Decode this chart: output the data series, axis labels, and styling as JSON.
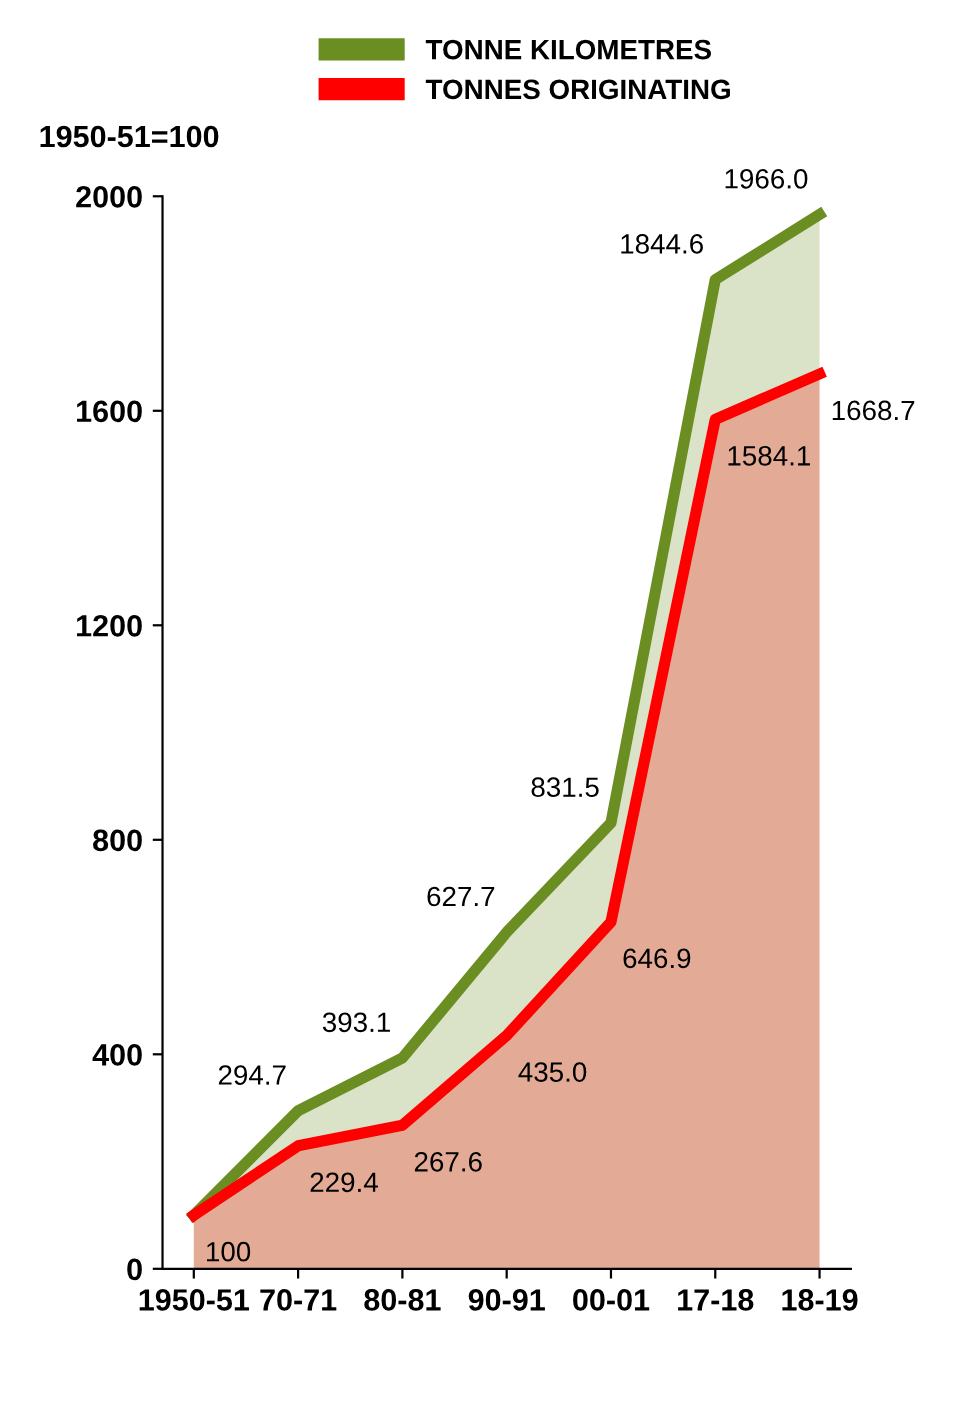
{
  "chart_data": {
    "type": "area",
    "ylabel": "1950-51=100",
    "categories": [
      "1950-51",
      "70-71",
      "80-81",
      "90-91",
      "00-01",
      "17-18",
      "18-19"
    ],
    "series": [
      {
        "name": "TONNE KILOMETRES",
        "color": "#6b8e23",
        "values": [
          100,
          294.7,
          393.1,
          627.7,
          831.5,
          1844.6,
          1966.0
        ],
        "value_labels": [
          null,
          "294.7",
          "393.1",
          "627.7",
          "831.5",
          "1844.6",
          "1966.0"
        ]
      },
      {
        "name": "TONNES ORIGINATING",
        "color": "#ff0000",
        "values": [
          100,
          229.4,
          267.6,
          435.0,
          646.9,
          1584.1,
          1668.7
        ],
        "value_labels": [
          "100",
          "229.4",
          "267.6",
          "435.0",
          "646.9",
          "1584.1",
          "1668.7"
        ]
      }
    ],
    "ylim": [
      0,
      2000
    ],
    "yticks": [
      0,
      400,
      800,
      1200,
      1600,
      2000
    ],
    "grid": false,
    "legend": "top"
  }
}
